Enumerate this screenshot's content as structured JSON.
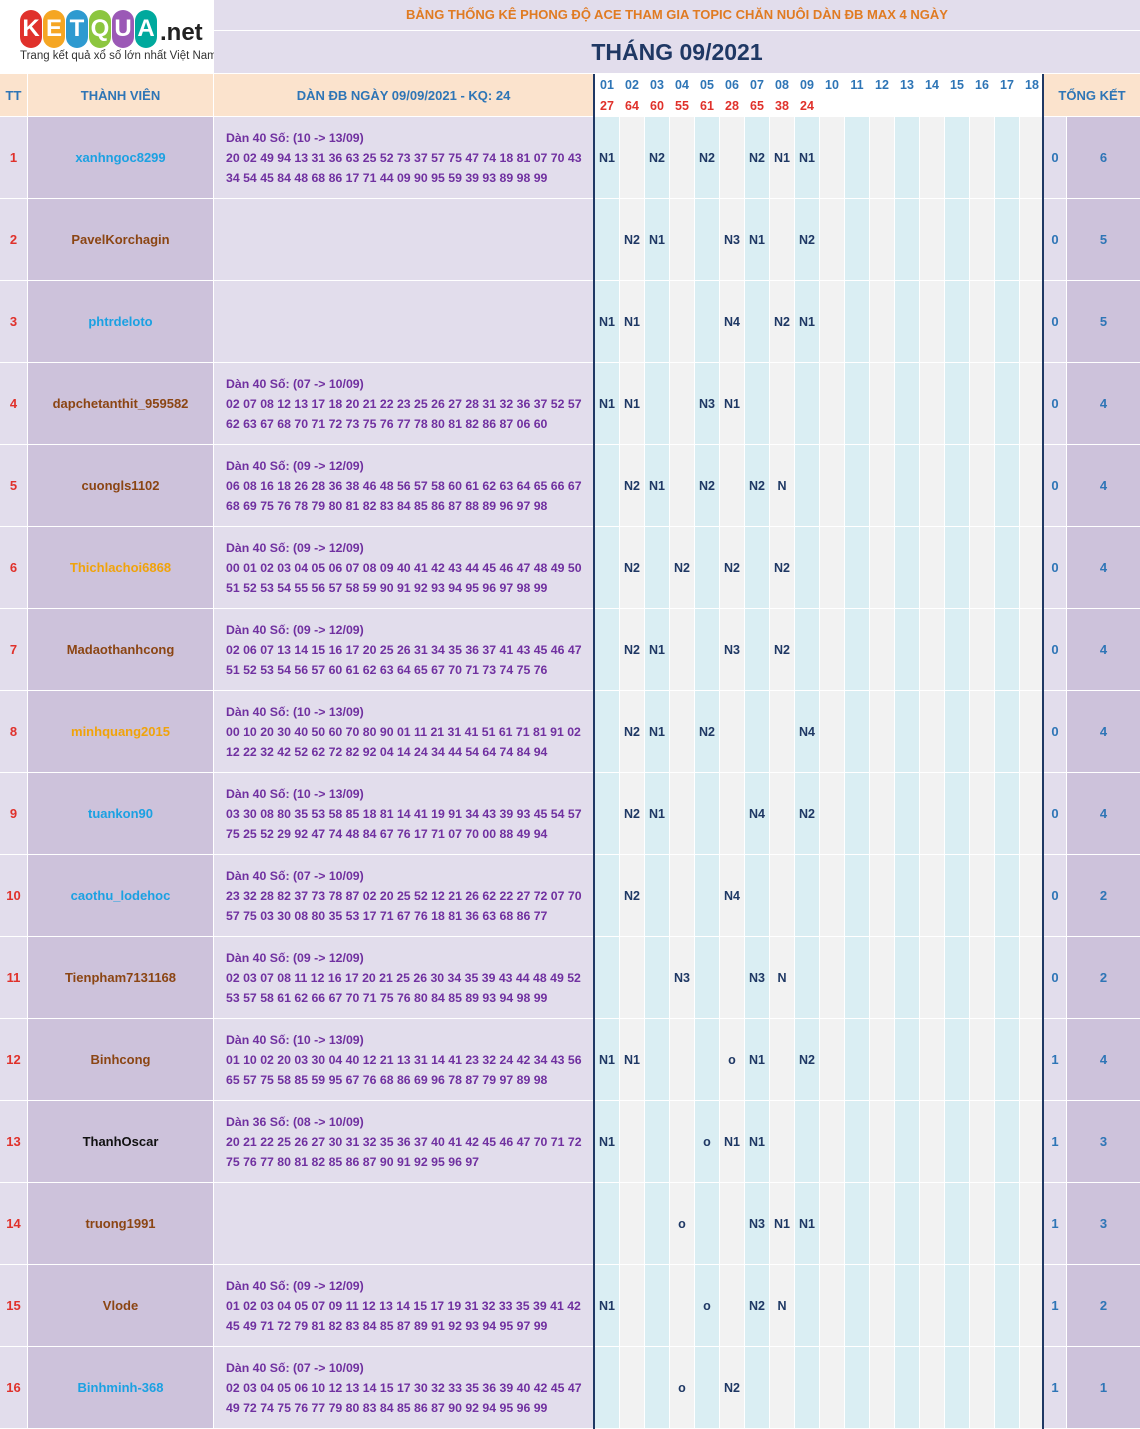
{
  "logo": {
    "letters": [
      "K",
      "E",
      "T",
      "Q",
      "U",
      "A"
    ],
    "letter_colors": [
      "#e0312b",
      "#f5a623",
      "#2e9ad0",
      "#8cc63f",
      "#9b59b6",
      "#00a99d"
    ],
    "suffix": ".net",
    "tagline": "Trang kết quả xổ số lớn nhất Việt Nam"
  },
  "title": "BẢNG THỐNG KÊ PHONG ĐỘ ACE THAM GIA TOPIC CHĂN NUÔI DÀN ĐB MAX 4 NGÀY",
  "month": "THÁNG 09/2021",
  "headers": {
    "tt": "TT",
    "member": "THÀNH VIÊN",
    "dan": "DÀN ĐB NGÀY 09/09/2021 - KQ: 24",
    "total": "TỔNG KẾT"
  },
  "days": [
    "01",
    "02",
    "03",
    "04",
    "05",
    "06",
    "07",
    "08",
    "09",
    "10",
    "11",
    "12",
    "13",
    "14",
    "15",
    "16",
    "17",
    "18"
  ],
  "results": [
    "27",
    "64",
    "60",
    "55",
    "61",
    "28",
    "65",
    "38",
    "24",
    "",
    "",
    "",
    "",
    "",
    "",
    "",
    "",
    ""
  ],
  "name_colors": {
    "blue": "#1ba1e2",
    "brown": "#8b4513",
    "orange": "#f0a30a",
    "black": "#111111"
  },
  "rows": [
    {
      "tt": "1",
      "name": "xanhngoc8299",
      "color": "blue",
      "dan": [
        "Dàn 40 Số: (10 -> 13/09)",
        "20 02 49 94 13 31 36 63 25 52 73 37 57 75 47 74 18 81 07 70 43",
        "34 54 45 84 48 68 86 17 71 44 09 90 95 59 39 93 89 98 99"
      ],
      "marks": [
        "N1",
        "",
        "N2",
        "",
        "N2",
        "",
        "N2",
        "N1",
        "N1",
        "",
        "",
        "",
        "",
        "",
        "",
        "",
        "",
        ""
      ],
      "t1": "0",
      "t2": "6"
    },
    {
      "tt": "2",
      "name": "PavelKorchagin",
      "color": "brown",
      "dan": [
        "",
        "",
        ""
      ],
      "marks": [
        "",
        "N2",
        "N1",
        "",
        "",
        "N3",
        "N1",
        "",
        "N2",
        "",
        "",
        "",
        "",
        "",
        "",
        "",
        "",
        ""
      ],
      "t1": "0",
      "t2": "5"
    },
    {
      "tt": "3",
      "name": "phtrdeloto",
      "color": "blue",
      "dan": [
        "",
        "",
        ""
      ],
      "marks": [
        "N1",
        "N1",
        "",
        "",
        "",
        "N4",
        "",
        "N2",
        "N1",
        "",
        "",
        "",
        "",
        "",
        "",
        "",
        "",
        ""
      ],
      "t1": "0",
      "t2": "5"
    },
    {
      "tt": "4",
      "name": "dapchetanthit_959582",
      "color": "brown",
      "dan": [
        "Dàn 40 Số: (07 -> 10/09)",
        "02 07 08 12 13 17 18 20 21 22 23 25 26 27 28 31 32 36 37 52 57",
        "62 63 67 68 70 71 72 73 75 76 77 78 80 81 82 86 87 06 60"
      ],
      "marks": [
        "N1",
        "N1",
        "",
        "",
        "N3",
        "N1",
        "",
        "",
        "",
        "",
        "",
        "",
        "",
        "",
        "",
        "",
        "",
        ""
      ],
      "t1": "0",
      "t2": "4"
    },
    {
      "tt": "5",
      "name": "cuongls1102",
      "color": "brown",
      "dan": [
        "Dàn 40 Số: (09 -> 12/09)",
        "06 08 16 18 26 28 36 38 46 48 56 57 58 60 61 62 63 64 65 66 67",
        "68 69 75 76 78 79 80 81 82 83 84 85 86 87 88 89 96 97 98"
      ],
      "marks": [
        "",
        "N2",
        "N1",
        "",
        "N2",
        "",
        "N2",
        "N",
        "",
        "",
        "",
        "",
        "",
        "",
        "",
        "",
        "",
        ""
      ],
      "t1": "0",
      "t2": "4"
    },
    {
      "tt": "6",
      "name": "Thichlachoi6868",
      "color": "orange",
      "dan": [
        "Dàn 40 Số: (09 -> 12/09)",
        "00 01 02 03 04 05 06 07 08 09 40 41 42 43 44 45 46 47 48 49 50",
        "51 52 53 54 55 56 57 58 59 90 91 92 93 94 95 96 97 98 99"
      ],
      "marks": [
        "",
        "N2",
        "",
        "N2",
        "",
        "N2",
        "",
        "N2",
        "",
        "",
        "",
        "",
        "",
        "",
        "",
        "",
        "",
        ""
      ],
      "t1": "0",
      "t2": "4"
    },
    {
      "tt": "7",
      "name": "Madaothanhcong",
      "color": "brown",
      "dan": [
        "Dàn 40 Số: (09 -> 12/09)",
        "02 06 07 13 14 15 16 17 20 25 26 31 34 35 36 37 41 43 45 46 47",
        "51 52 53 54 56 57 60 61 62 63 64 65 67 70 71 73 74 75 76"
      ],
      "marks": [
        "",
        "N2",
        "N1",
        "",
        "",
        "N3",
        "",
        "N2",
        "",
        "",
        "",
        "",
        "",
        "",
        "",
        "",
        "",
        ""
      ],
      "t1": "0",
      "t2": "4"
    },
    {
      "tt": "8",
      "name": "minhquang2015",
      "color": "orange",
      "dan": [
        "Dàn 40 Số: (10 -> 13/09)",
        "00 10 20 30 40 50 60 70 80 90 01 11 21 31 41 51 61 71 81 91 02",
        "12 22 32 42 52 62 72 82 92 04 14 24 34 44 54 64 74 84 94"
      ],
      "marks": [
        "",
        "N2",
        "N1",
        "",
        "N2",
        "",
        "",
        "",
        "N4",
        "",
        "",
        "",
        "",
        "",
        "",
        "",
        "",
        ""
      ],
      "t1": "0",
      "t2": "4"
    },
    {
      "tt": "9",
      "name": "tuankon90",
      "color": "blue",
      "dan": [
        "Dàn 40 Số: (10 -> 13/09)",
        "03 30 08 80 35 53 58 85 18 81 14 41 19 91 34 43 39 93 45 54 57",
        "75 25 52 29 92 47 74 48 84 67 76 17 71 07 70 00 88 49 94"
      ],
      "marks": [
        "",
        "N2",
        "N1",
        "",
        "",
        "",
        "N4",
        "",
        "N2",
        "",
        "",
        "",
        "",
        "",
        "",
        "",
        "",
        ""
      ],
      "t1": "0",
      "t2": "4"
    },
    {
      "tt": "10",
      "name": "caothu_lodehoc",
      "color": "blue",
      "dan": [
        "Dàn 40 Số: (07 -> 10/09)",
        "23 32 28 82 37 73 78 87 02 20 25 52 12 21 26 62 22 27 72 07 70",
        "57 75 03 30 08 80 35 53 17 71 67 76 18 81 36 63 68 86 77"
      ],
      "marks": [
        "",
        "N2",
        "",
        "",
        "",
        "N4",
        "",
        "",
        "",
        "",
        "",
        "",
        "",
        "",
        "",
        "",
        "",
        ""
      ],
      "t1": "0",
      "t2": "2"
    },
    {
      "tt": "11",
      "name": "Tienpham7131168",
      "color": "brown",
      "dan": [
        "Dàn 40 Số: (09 -> 12/09)",
        "02 03 07 08 11 12 16 17 20 21 25 26 30 34 35 39 43 44 48 49 52",
        "53 57 58 61 62 66 67 70 71 75 76 80 84 85 89 93 94 98 99"
      ],
      "marks": [
        "",
        "",
        "",
        "N3",
        "",
        "",
        "N3",
        "N",
        "",
        "",
        "",
        "",
        "",
        "",
        "",
        "",
        "",
        ""
      ],
      "t1": "0",
      "t2": "2"
    },
    {
      "tt": "12",
      "name": "Binhcong",
      "color": "brown",
      "dan": [
        "Dàn 40 Số: (10 -> 13/09)",
        "01 10 02 20 03 30 04 40 12 21 13 31 14 41 23 32 24 42 34 43 56",
        "65 57 75 58 85 59 95 67 76 68 86 69 96 78 87 79 97 89 98"
      ],
      "marks": [
        "N1",
        "N1",
        "",
        "",
        "",
        "o",
        "N1",
        "",
        "N2",
        "",
        "",
        "",
        "",
        "",
        "",
        "",
        "",
        ""
      ],
      "t1": "1",
      "t2": "4"
    },
    {
      "tt": "13",
      "name": "ThanhOscar",
      "color": "black",
      "dan": [
        "Dàn 36 Số: (08 -> 10/09)",
        "20 21 22 25 26 27 30 31 32 35 36 37 40 41 42 45 46 47 70 71 72",
        "75 76 77 80 81 82 85 86 87 90 91 92 95 96 97"
      ],
      "marks": [
        "N1",
        "",
        "",
        "",
        "o",
        "N1",
        "N1",
        "",
        "",
        "",
        "",
        "",
        "",
        "",
        "",
        "",
        "",
        ""
      ],
      "t1": "1",
      "t2": "3"
    },
    {
      "tt": "14",
      "name": "truong1991",
      "color": "brown",
      "dan": [
        "",
        "",
        ""
      ],
      "marks": [
        "",
        "",
        "",
        "o",
        "",
        "",
        "N3",
        "N1",
        "N1",
        "",
        "",
        "",
        "",
        "",
        "",
        "",
        "",
        ""
      ],
      "t1": "1",
      "t2": "3"
    },
    {
      "tt": "15",
      "name": "Vlode",
      "color": "brown",
      "dan": [
        "Dàn 40 Số: (09 -> 12/09)",
        "01 02 03 04 05 07 09 11 12 13 14 15 17 19 31 32 33 35 39 41 42",
        "45 49 71 72 79 81 82 83 84 85 87 89 91 92 93 94 95 97 99"
      ],
      "marks": [
        "N1",
        "",
        "",
        "",
        "o",
        "",
        "N2",
        "N",
        "",
        "",
        "",
        "",
        "",
        "",
        "",
        "",
        "",
        ""
      ],
      "t1": "1",
      "t2": "2"
    },
    {
      "tt": "16",
      "name": "Binhminh-368",
      "color": "blue",
      "dan": [
        "Dàn 40 Số: (07 -> 10/09)",
        "02 03 04 05 06 10 12 13 14 15 17 30 32 33 35 36 39 40 42 45 47",
        "49 72 74 75 76 77 79 80 83 84 85 86 87 90 92 94 95 96 99"
      ],
      "marks": [
        "",
        "",
        "",
        "o",
        "",
        "N2",
        "",
        "",
        "",
        "",
        "",
        "",
        "",
        "",
        "",
        "",
        "",
        ""
      ],
      "t1": "1",
      "t2": "1"
    }
  ],
  "palette": {
    "day_even": "#daeef3",
    "day_odd": "#f2f2f2",
    "grid": "#1f3864",
    "cell_border": "#ffffff"
  }
}
